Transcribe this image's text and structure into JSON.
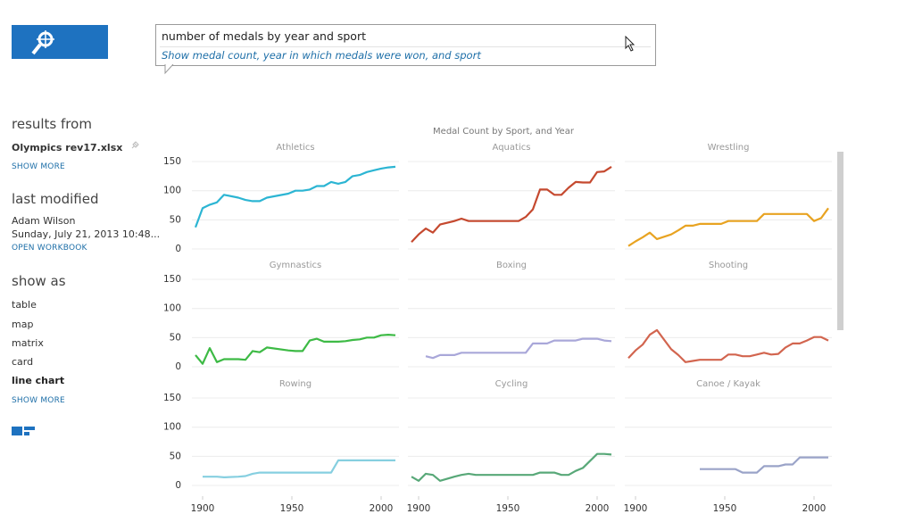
{
  "search": {
    "query": "number of medals by year and sport",
    "suggestion": "Show medal count, year in which medals were won, and sport"
  },
  "sidebar": {
    "results_heading": "results from",
    "file": "Olympics rev17.xlsx",
    "show_more_results": "SHOW MORE",
    "modified_heading": "last modified",
    "author": "Adam Wilson",
    "date": "Sunday, July 21, 2013 10:48...",
    "open_workbook": "OPEN WORKBOOK",
    "show_as_heading": "show as",
    "options": [
      {
        "label": "table"
      },
      {
        "label": "map"
      },
      {
        "label": "matrix"
      },
      {
        "label": "card"
      },
      {
        "label": "line chart",
        "selected": true
      }
    ],
    "show_more_options": "SHOW MORE"
  },
  "chart_data": {
    "type": "line",
    "title": "Medal Count by Sport, and Year",
    "x": [
      1896,
      1900,
      1904,
      1908,
      1912,
      1920,
      1924,
      1928,
      1932,
      1936,
      1948,
      1952,
      1956,
      1960,
      1964,
      1968,
      1972,
      1976,
      1980,
      1984,
      1988,
      1992,
      1996,
      2000,
      2004,
      2008
    ],
    "xlim": [
      1894,
      2010
    ],
    "xticks": [
      1900,
      1950,
      2000
    ],
    "ylim": [
      0,
      160
    ],
    "yticks": [
      0,
      50,
      100,
      150
    ],
    "grid": true,
    "series": [
      {
        "name": "Athletics",
        "color": "#2cb5d3",
        "values": [
          37,
          70,
          76,
          80,
          93,
          88,
          84,
          82,
          82,
          88,
          95,
          100,
          100,
          102,
          108,
          108,
          115,
          112,
          115,
          125,
          127,
          132,
          135,
          138,
          140,
          141
        ]
      },
      {
        "name": "Aquatics",
        "color": "#c5492f",
        "values": [
          12,
          25,
          35,
          28,
          42,
          48,
          52,
          48,
          48,
          48,
          48,
          48,
          48,
          55,
          68,
          102,
          102,
          93,
          93,
          105,
          115,
          114,
          114,
          132,
          133,
          141
        ]
      },
      {
        "name": "Wrestling",
        "color": "#e8a321",
        "values": [
          5,
          13,
          20,
          28,
          17,
          25,
          32,
          40,
          40,
          43,
          43,
          48,
          48,
          48,
          48,
          48,
          60,
          60,
          60,
          60,
          60,
          60,
          60,
          48,
          53,
          70
        ]
      },
      {
        "name": "Gymnastics",
        "color": "#3dba45",
        "values": [
          20,
          5,
          32,
          8,
          13,
          13,
          12,
          27,
          25,
          33,
          28,
          27,
          27,
          45,
          48,
          43,
          43,
          43,
          44,
          46,
          47,
          50,
          50,
          54,
          55,
          54
        ]
      },
      {
        "name": "Boxing",
        "color": "#a9a7d9",
        "values": [
          null,
          null,
          18,
          15,
          20,
          20,
          24,
          24,
          24,
          24,
          24,
          24,
          24,
          24,
          40,
          40,
          40,
          45,
          45,
          45,
          45,
          48,
          48,
          48,
          45,
          44
        ]
      },
      {
        "name": "Shooting",
        "color": "#d2654f",
        "values": [
          15,
          28,
          38,
          55,
          63,
          30,
          20,
          8,
          10,
          12,
          12,
          21,
          21,
          18,
          18,
          21,
          24,
          21,
          22,
          33,
          40,
          40,
          45,
          51,
          51,
          45
        ]
      },
      {
        "name": "Rowing",
        "color": "#86cfe0",
        "values": [
          null,
          15,
          15,
          15,
          14,
          15,
          16,
          20,
          22,
          22,
          22,
          22,
          22,
          22,
          22,
          22,
          22,
          43,
          43,
          43,
          43,
          43,
          43,
          43,
          43,
          43
        ]
      },
      {
        "name": "Cycling",
        "color": "#58a878",
        "values": [
          15,
          8,
          20,
          18,
          8,
          15,
          18,
          20,
          18,
          18,
          18,
          18,
          18,
          18,
          18,
          22,
          22,
          22,
          18,
          18,
          25,
          30,
          42,
          54,
          54,
          53
        ]
      },
      {
        "name": "Canoe / Kayak",
        "color": "#9aa3c8",
        "values": [
          null,
          null,
          null,
          null,
          null,
          null,
          null,
          null,
          null,
          28,
          28,
          28,
          28,
          22,
          22,
          22,
          33,
          33,
          33,
          36,
          36,
          48,
          48,
          48,
          48,
          48
        ]
      }
    ]
  }
}
